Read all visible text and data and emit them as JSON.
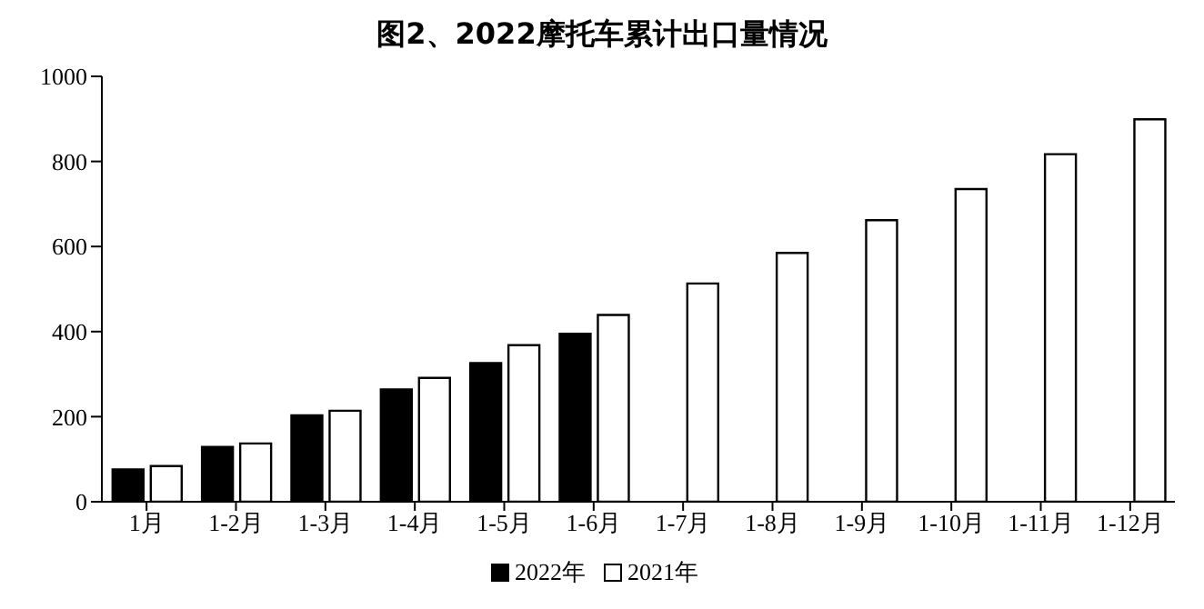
{
  "chart_data": {
    "type": "bar",
    "title": "图2、2022摩托车累计出口量情况",
    "categories": [
      "1月",
      "1-2月",
      "1-3月",
      "1-4月",
      "1-5月",
      "1-6月",
      "1-7月",
      "1-8月",
      "1-9月",
      "1-10月",
      "1-11月",
      "1-12月"
    ],
    "series": [
      {
        "name": "2022年",
        "color": "#000000",
        "values": [
          76,
          129,
          203,
          264,
          326,
          395,
          null,
          null,
          null,
          null,
          null,
          null
        ]
      },
      {
        "name": "2021年",
        "color": "#ffffff",
        "values": [
          84,
          137,
          214,
          291,
          368,
          439,
          513,
          585,
          662,
          735,
          817,
          899
        ]
      }
    ],
    "ylim": [
      0,
      1000
    ],
    "yticks": [
      0,
      200,
      400,
      600,
      800,
      1000
    ],
    "grid": false,
    "legend": "bottom"
  }
}
